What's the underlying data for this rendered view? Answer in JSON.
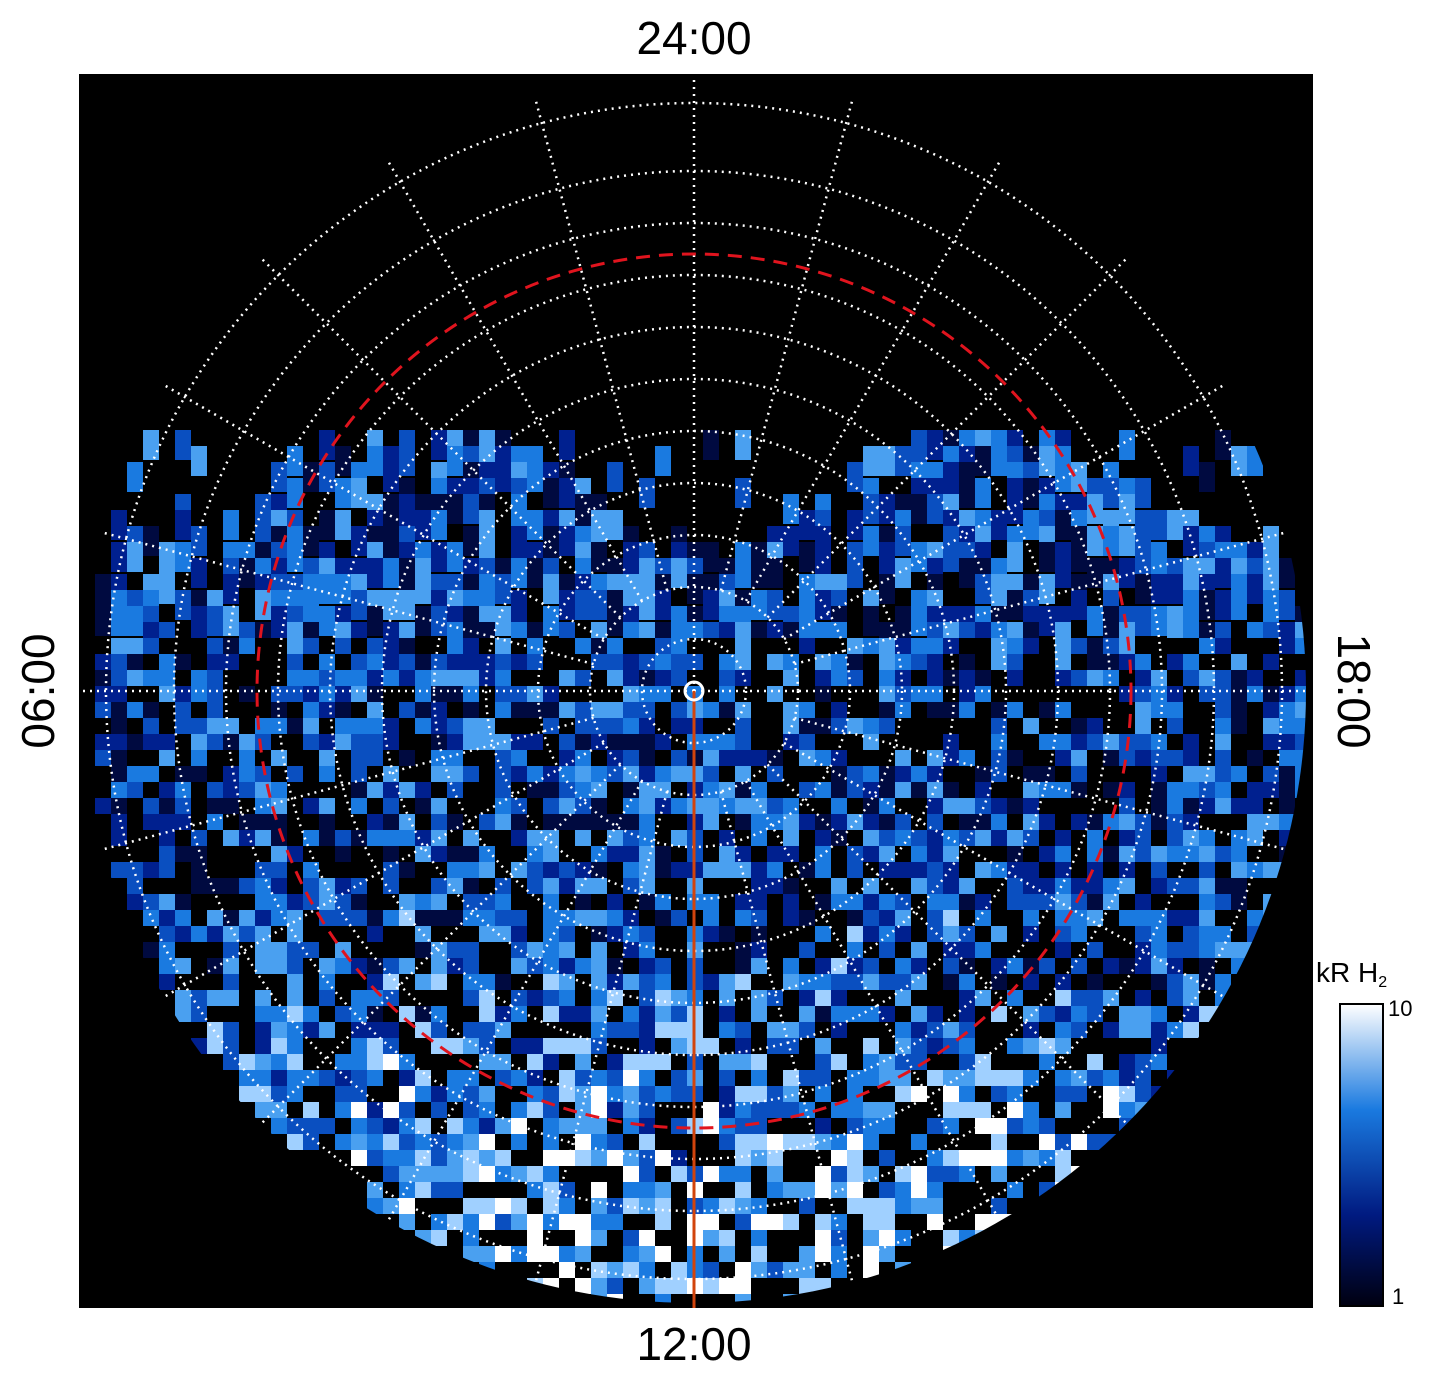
{
  "labels": {
    "top": "24:00",
    "bottom": "12:00",
    "left": "06:00",
    "right": "18:00"
  },
  "colorbar": {
    "title": "kR H",
    "title_subscript": "2",
    "ticks": [
      "10",
      "1"
    ]
  }
}
